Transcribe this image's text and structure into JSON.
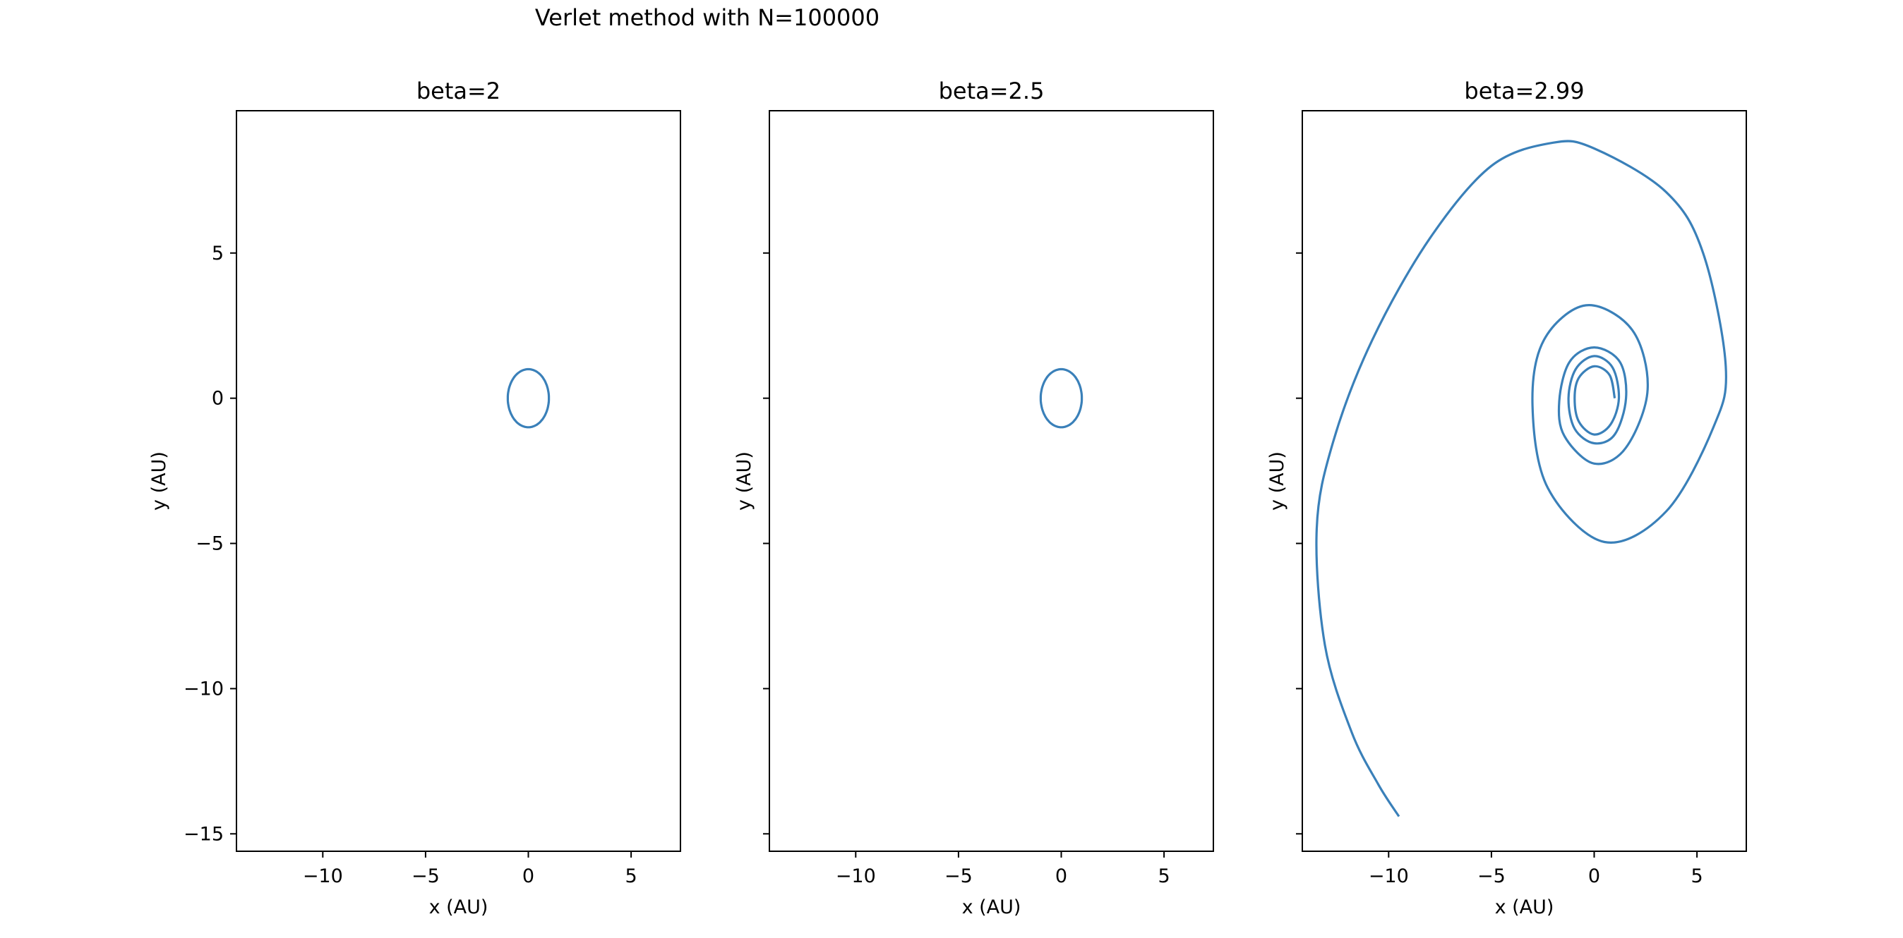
{
  "chart_data": {
    "suptitle": "Verlet method with N=100000",
    "panels": [
      {
        "type": "line",
        "title": "beta=2",
        "xlabel": "x (AU)",
        "ylabel": "y (AU)",
        "xlim": [
          -14.2,
          7.4
        ],
        "ylim": [
          -15.6,
          9.9
        ],
        "xticks": [
          -10,
          -5,
          0,
          5
        ],
        "xtick_labels": [
          "−10",
          "−5",
          "0",
          "5"
        ],
        "yticks": [
          5,
          0,
          -5,
          -10,
          -15
        ],
        "ytick_labels": [
          "5",
          "0",
          "−5",
          "−10",
          "−15"
        ],
        "show_ytick_labels": true,
        "orbit": "circle",
        "radius": 1.0,
        "color": "#3a80b9"
      },
      {
        "type": "line",
        "title": "beta=2.5",
        "xlabel": "x (AU)",
        "ylabel": "y (AU)",
        "xlim": [
          -14.2,
          7.4
        ],
        "ylim": [
          -15.6,
          9.9
        ],
        "xticks": [
          -10,
          -5,
          0,
          5
        ],
        "xtick_labels": [
          "−10",
          "−5",
          "0",
          "5"
        ],
        "yticks": [
          5,
          0,
          -5,
          -10,
          -15
        ],
        "ytick_labels": [
          "",
          "",
          "",
          "",
          ""
        ],
        "show_ytick_labels": false,
        "orbit": "circle",
        "radius": 1.0,
        "color": "#3a80b9"
      },
      {
        "type": "line",
        "title": "beta=2.99",
        "xlabel": "x (AU)",
        "ylabel": "y (AU)",
        "xlim": [
          -14.2,
          7.4
        ],
        "ylim": [
          -15.6,
          9.9
        ],
        "xticks": [
          -10,
          -5,
          0,
          5
        ],
        "xtick_labels": [
          "−10",
          "−5",
          "0",
          "5"
        ],
        "yticks": [
          5,
          0,
          -5,
          -10,
          -15
        ],
        "ytick_labels": [
          "",
          "",
          "",
          "",
          ""
        ],
        "show_ytick_labels": false,
        "orbit": "spiral",
        "color": "#3a80b9",
        "points": [
          [
            1.0,
            0.0
          ],
          [
            0.75,
            0.8
          ],
          [
            0.0,
            1.1
          ],
          [
            -0.75,
            0.7
          ],
          [
            -0.95,
            0.0
          ],
          [
            -0.75,
            -0.8
          ],
          [
            0.0,
            -1.25
          ],
          [
            0.8,
            -0.9
          ],
          [
            1.2,
            0.0
          ],
          [
            0.9,
            1.05
          ],
          [
            0.0,
            1.45
          ],
          [
            -0.9,
            1.0
          ],
          [
            -1.25,
            0.0
          ],
          [
            -0.95,
            -1.05
          ],
          [
            0.0,
            -1.55
          ],
          [
            1.0,
            -1.25
          ],
          [
            1.55,
            0.0
          ],
          [
            1.25,
            1.25
          ],
          [
            0.0,
            1.75
          ],
          [
            -1.2,
            1.25
          ],
          [
            -1.7,
            -0.1
          ],
          [
            -1.45,
            -1.3
          ],
          [
            0.0,
            -2.25
          ],
          [
            1.55,
            -1.7
          ],
          [
            2.6,
            0.3
          ],
          [
            1.85,
            2.35
          ],
          [
            -0.4,
            3.2
          ],
          [
            -2.45,
            2.0
          ],
          [
            -3.0,
            -0.25
          ],
          [
            -2.25,
            -3.1
          ],
          [
            0.5,
            -4.95
          ],
          [
            3.5,
            -3.9
          ],
          [
            5.8,
            -1.0
          ],
          [
            6.4,
            1.1
          ],
          [
            5.3,
            5.0
          ],
          [
            3.5,
            7.1
          ],
          [
            0.0,
            8.6
          ],
          [
            -2.0,
            8.8
          ],
          [
            -5.0,
            8.0
          ],
          [
            -8.0,
            5.5
          ],
          [
            -10.8,
            2.0
          ],
          [
            -12.7,
            -1.5
          ],
          [
            -13.5,
            -4.5
          ],
          [
            -13.1,
            -8.5
          ],
          [
            -11.8,
            -11.5
          ],
          [
            -10.5,
            -13.3
          ],
          [
            -9.5,
            -14.4
          ]
        ]
      }
    ]
  }
}
